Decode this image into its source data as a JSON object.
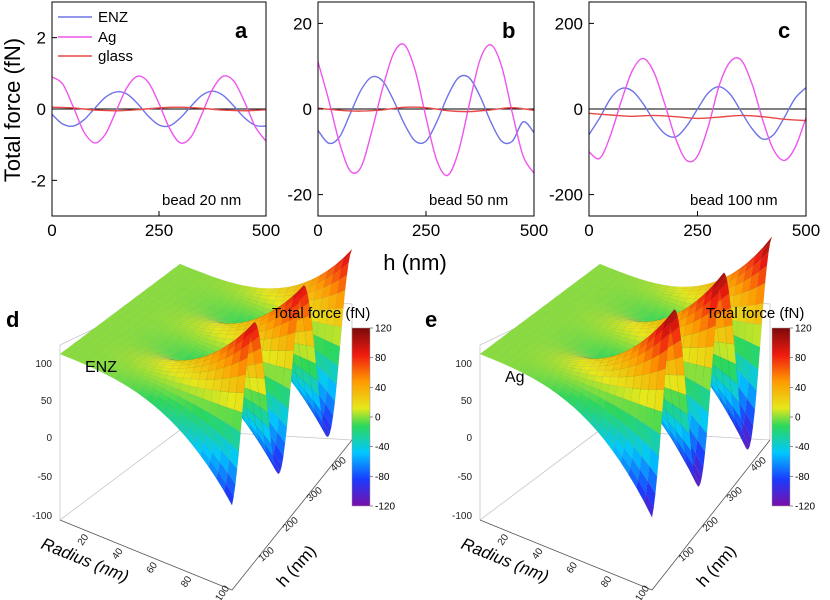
{
  "shared": {
    "ylabel": "Total force (fN)",
    "xlabel": "h (nm)",
    "legend": [
      {
        "name": "ENZ",
        "color": "#6e74e6"
      },
      {
        "name": "Ag",
        "color": "#ee55ee"
      },
      {
        "name": "glass",
        "color": "#e84848"
      }
    ],
    "zero_line_color": "#000000"
  },
  "chart_data": [
    {
      "type": "line",
      "panel": "a",
      "annotation": "bead 20 nm",
      "xlim": [
        0,
        500
      ],
      "ylim": [
        -3,
        3
      ],
      "xticks": [
        0,
        250,
        500
      ],
      "yticks": [
        -2,
        0,
        2
      ],
      "series": [
        {
          "name": "ENZ",
          "x": [
            0,
            25,
            50,
            75,
            100,
            125,
            150,
            175,
            200,
            225,
            250,
            275,
            300,
            325,
            350,
            375,
            400,
            425,
            450,
            475,
            500
          ],
          "y": [
            -0.15,
            -0.42,
            -0.48,
            -0.3,
            0.02,
            0.33,
            0.48,
            0.42,
            0.15,
            -0.2,
            -0.45,
            -0.47,
            -0.25,
            0.08,
            0.38,
            0.5,
            0.38,
            0.08,
            -0.25,
            -0.46,
            -0.48
          ]
        },
        {
          "name": "Ag",
          "x": [
            0,
            25,
            50,
            75,
            100,
            125,
            150,
            175,
            200,
            225,
            250,
            275,
            300,
            325,
            350,
            375,
            400,
            425,
            450,
            475,
            500
          ],
          "y": [
            0.9,
            0.7,
            0.05,
            -0.65,
            -0.95,
            -0.7,
            -0.05,
            0.6,
            0.92,
            0.75,
            0.15,
            -0.55,
            -0.95,
            -0.78,
            -0.15,
            0.55,
            0.92,
            0.78,
            0.2,
            -0.5,
            -0.9
          ]
        },
        {
          "name": "glass",
          "x": [
            0,
            50,
            100,
            150,
            200,
            250,
            300,
            350,
            400,
            450,
            500
          ],
          "y": [
            0.05,
            0.03,
            -0.03,
            -0.05,
            -0.02,
            0.03,
            0.05,
            0.02,
            -0.03,
            -0.05,
            -0.02
          ]
        }
      ]
    },
    {
      "type": "line",
      "panel": "b",
      "annotation": "bead 50 nm",
      "xlim": [
        0,
        500
      ],
      "ylim": [
        -25,
        25
      ],
      "xticks": [
        0,
        250,
        500
      ],
      "yticks": [
        -20,
        0,
        20
      ],
      "series": [
        {
          "name": "ENZ",
          "x": [
            0,
            25,
            50,
            75,
            100,
            125,
            150,
            175,
            200,
            225,
            250,
            275,
            300,
            325,
            350,
            375,
            400,
            425,
            450,
            475,
            500
          ],
          "y": [
            -5,
            -8,
            -6.5,
            -1,
            4.5,
            7.5,
            6.5,
            2,
            -3.5,
            -7.5,
            -7.5,
            -3,
            3,
            7.3,
            7.3,
            3,
            -3,
            -7.5,
            -7.5,
            -3,
            -5.5
          ]
        },
        {
          "name": "Ag",
          "x": [
            0,
            25,
            50,
            75,
            100,
            125,
            150,
            175,
            200,
            225,
            250,
            275,
            300,
            325,
            350,
            375,
            400,
            425,
            450,
            475,
            500
          ],
          "y": [
            11,
            2,
            -8,
            -14.5,
            -13.5,
            -5,
            5,
            13,
            15,
            9,
            -2,
            -12,
            -15.5,
            -10,
            1,
            11.5,
            15,
            10,
            -1,
            -11,
            -15
          ]
        },
        {
          "name": "glass",
          "x": [
            0,
            50,
            100,
            150,
            200,
            250,
            300,
            350,
            400,
            450,
            500
          ],
          "y": [
            0.2,
            -0.3,
            -0.5,
            -0.2,
            0.4,
            0.3,
            -0.4,
            -0.6,
            -0.2,
            0.3,
            -0.3
          ]
        }
      ]
    },
    {
      "type": "line",
      "panel": "c",
      "annotation": "bead 100 nm",
      "xlim": [
        0,
        500
      ],
      "ylim": [
        -250,
        250
      ],
      "xticks": [
        0,
        250,
        500
      ],
      "yticks": [
        -200,
        0,
        200
      ],
      "series": [
        {
          "name": "ENZ",
          "x": [
            0,
            25,
            50,
            75,
            100,
            125,
            150,
            175,
            200,
            225,
            250,
            275,
            300,
            325,
            350,
            375,
            400,
            425,
            450,
            475,
            500
          ],
          "y": [
            -60,
            -20,
            25,
            48,
            42,
            12,
            -28,
            -58,
            -65,
            -40,
            0,
            38,
            52,
            35,
            -5,
            -45,
            -70,
            -60,
            -20,
            25,
            50
          ]
        },
        {
          "name": "Ag",
          "x": [
            0,
            25,
            50,
            75,
            100,
            125,
            150,
            175,
            200,
            225,
            250,
            275,
            300,
            325,
            350,
            375,
            400,
            425,
            450,
            475,
            500
          ],
          "y": [
            -100,
            -115,
            -60,
            20,
            90,
            118,
            85,
            10,
            -70,
            -120,
            -110,
            -40,
            55,
            110,
            115,
            60,
            -25,
            -95,
            -120,
            -90,
            -20
          ]
        },
        {
          "name": "glass",
          "x": [
            0,
            50,
            100,
            150,
            200,
            250,
            300,
            350,
            400,
            450,
            500
          ],
          "y": [
            -10,
            -14,
            -17,
            -15,
            -18,
            -22,
            -19,
            -15,
            -18,
            -24,
            -27
          ]
        }
      ]
    },
    {
      "type": "surface3d",
      "panel": "d",
      "label": "ENZ",
      "x_label": "Radius (nm)",
      "y_label": "h (nm)",
      "colorbar_title": "Total force (fN)",
      "zticks": [
        100,
        50,
        0,
        -50,
        -100
      ],
      "radius_ticks": [
        20,
        40,
        60,
        80,
        100
      ],
      "h_ticks": [
        100,
        200,
        300,
        400,
        500
      ],
      "colorbar_ticks": [
        120,
        80,
        40,
        0,
        -40,
        -80,
        -120
      ],
      "radius_range": [
        0,
        100
      ],
      "h_range": [
        0,
        500
      ],
      "z_range": [
        -120,
        120
      ],
      "peak_force": [
        -110,
        55
      ]
    },
    {
      "type": "surface3d",
      "panel": "e",
      "label": "Ag",
      "x_label": "Radius (nm)",
      "y_label": "h (nm)",
      "colorbar_title": "Total force (fN)",
      "zticks": [
        100,
        50,
        0,
        -50,
        -100
      ],
      "radius_ticks": [
        20,
        40,
        60,
        80,
        100
      ],
      "h_ticks": [
        100,
        200,
        300,
        400,
        500
      ],
      "colorbar_ticks": [
        120,
        80,
        40,
        0,
        -40,
        -80,
        -120
      ],
      "radius_range": [
        0,
        100
      ],
      "h_range": [
        0,
        500
      ],
      "z_range": [
        -120,
        120
      ],
      "peak_force": [
        -120,
        120
      ]
    }
  ]
}
